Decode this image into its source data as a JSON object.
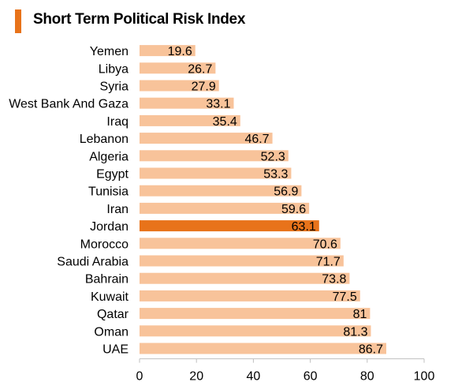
{
  "chart_data": {
    "type": "bar",
    "orientation": "horizontal",
    "title": "Short Term Political Risk Index",
    "xlabel": "",
    "ylabel": "",
    "categories": [
      "Yemen",
      "Libya",
      "Syria",
      "West Bank And Gaza",
      "Iraq",
      "Lebanon",
      "Algeria",
      "Egypt",
      "Tunisia",
      "Iran",
      "Jordan",
      "Morocco",
      "Saudi Arabia",
      "Bahrain",
      "Kuwait",
      "Qatar",
      "Oman",
      "UAE"
    ],
    "values": [
      19.6,
      26.7,
      27.9,
      33.1,
      35.4,
      46.7,
      52.3,
      53.3,
      56.9,
      59.6,
      63.1,
      70.6,
      71.7,
      73.8,
      77.5,
      81,
      81.3,
      86.7
    ],
    "value_labels": [
      "19.6",
      "26.7",
      "27.9",
      "33.1",
      "35.4",
      "46.7",
      "52.3",
      "53.3",
      "56.9",
      "59.6",
      "63.1",
      "70.6",
      "71.7",
      "73.8",
      "77.5",
      "81",
      "81.3",
      "86.7"
    ],
    "highlight": "Jordan",
    "xlim": [
      0,
      100
    ],
    "xticks": [
      0,
      20,
      40,
      60,
      80,
      100
    ],
    "grid": false,
    "legend": "none",
    "colors": {
      "bar": "#f8c39a",
      "highlight": "#e8731a",
      "accent": "#e8731a",
      "axis": "#bfbfbf"
    }
  }
}
